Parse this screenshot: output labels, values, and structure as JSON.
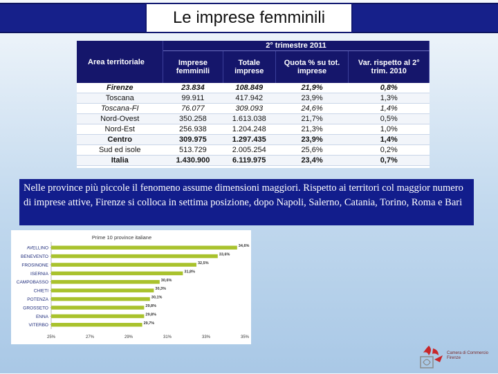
{
  "title": "Le imprese femminili",
  "table": {
    "period": "2° trimestre 2011",
    "headers": [
      "Area territoriale",
      "Imprese femminili",
      "Totale imprese",
      "Quota % su tot. imprese",
      "Var. rispetto al 2° trim. 2010"
    ],
    "rows": [
      {
        "area": "Firenze",
        "imprese": "23.834",
        "totale": "108.849",
        "quota": "21,9%",
        "var": "0,8%",
        "style": "b i"
      },
      {
        "area": "Toscana",
        "imprese": "99.911",
        "totale": "417.942",
        "quota": "23,9%",
        "var": "1,3%",
        "style": ""
      },
      {
        "area": "Toscana-FI",
        "imprese": "76.077",
        "totale": "309.093",
        "quota": "24,6%",
        "var": "1,4%",
        "style": "i"
      },
      {
        "area": "Nord-Ovest",
        "imprese": "350.258",
        "totale": "1.613.038",
        "quota": "21,7%",
        "var": "0,5%",
        "style": ""
      },
      {
        "area": "Nord-Est",
        "imprese": "256.938",
        "totale": "1.204.248",
        "quota": "21,3%",
        "var": "1,0%",
        "style": ""
      },
      {
        "area": "Centro",
        "imprese": "309.975",
        "totale": "1.297.435",
        "quota": "23,9%",
        "var": "1,4%",
        "style": "b"
      },
      {
        "area": "Sud ed isole",
        "imprese": "513.729",
        "totale": "2.005.254",
        "quota": "25,6%",
        "var": "0,2%",
        "style": ""
      },
      {
        "area": "Italia",
        "imprese": "1.430.900",
        "totale": "6.119.975",
        "quota": "23,4%",
        "var": "0,7%",
        "style": "b"
      }
    ]
  },
  "note": "Nelle province più piccole il fenomeno assume dimensioni maggiori. Rispetto ai territori col maggior numero di imprese attive, Firenze si colloca in settima posizione, dopo Napoli, Salerno, Catania, Torino, Roma e Bari",
  "chart_data": {
    "type": "bar",
    "orientation": "horizontal",
    "title": "Prime 10 province italiane",
    "categories": [
      "AVELLINO",
      "BENEVENTO",
      "FROSINONE",
      "ISERNIA",
      "CAMPOBASSO",
      "CHIETI",
      "POTENZA",
      "GROSSETO",
      "ENNA",
      "VITERBO"
    ],
    "values": [
      34.6,
      33.6,
      32.5,
      31.8,
      30.6,
      30.3,
      30.1,
      29.8,
      29.8,
      29.7
    ],
    "value_labels": [
      "34,6%",
      "33,6%",
      "32,5%",
      "31,8%",
      "30,6%",
      "30,3%",
      "30,1%",
      "29,8%",
      "29,8%",
      "29,7%"
    ],
    "xlim": [
      25,
      35
    ],
    "x_ticks": [
      "25%",
      "27%",
      "29%",
      "31%",
      "33%",
      "35%"
    ],
    "bar_color": "#a9c22d",
    "grid": false
  },
  "logo": {
    "text": "Camera di Commercio Firenze"
  },
  "colors": {
    "navy": "#15166b",
    "title_bar": "#16208a",
    "bar": "#a9c22d"
  }
}
